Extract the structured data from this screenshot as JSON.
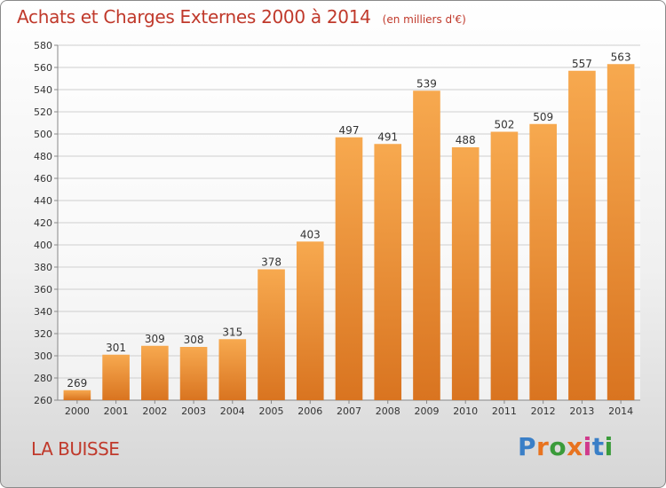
{
  "title": "Achats et Charges Externes 2000 à 2014",
  "unit_note": "(en milliers d'€)",
  "commune": "LA BUISSE",
  "logo": {
    "text": "Proxiti",
    "letter_colors": [
      "#3a7fc7",
      "#e8731f",
      "#3a9b3a",
      "#e8731f",
      "#d03a8c",
      "#3a7fc7",
      "#3a9b3a"
    ]
  },
  "colors": {
    "title": "#c0392b",
    "bar_light": "#f7a94f",
    "bar_dark": "#d97420",
    "grid": "#cfcfcf",
    "axis_text": "#333333"
  },
  "chart_data": {
    "type": "bar",
    "title": "Achats et Charges Externes 2000 à 2014",
    "subtitle": "(en milliers d'€)",
    "xlabel": "",
    "ylabel": "",
    "categories": [
      "2000",
      "2001",
      "2002",
      "2003",
      "2004",
      "2005",
      "2006",
      "2007",
      "2008",
      "2009",
      "2010",
      "2011",
      "2012",
      "2013",
      "2014"
    ],
    "values": [
      269,
      301,
      309,
      308,
      315,
      378,
      403,
      497,
      491,
      539,
      488,
      502,
      509,
      557,
      563
    ],
    "ylim": [
      260,
      580
    ],
    "yticks": [
      260,
      280,
      300,
      320,
      340,
      360,
      380,
      400,
      420,
      440,
      460,
      480,
      500,
      520,
      540,
      560,
      580
    ],
    "grid": true,
    "legend": "none",
    "data_labels": true
  }
}
